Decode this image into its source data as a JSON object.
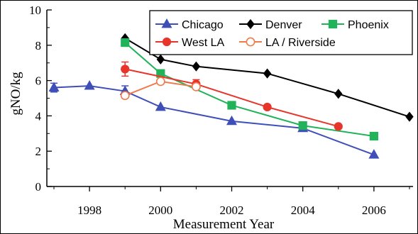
{
  "chart_data": {
    "type": "line",
    "title": "",
    "xlabel": "Measurement Year",
    "ylabel": "gNO/kg",
    "xlim": [
      1996.8,
      2007.1
    ],
    "ylim": [
      0,
      10
    ],
    "xticks": [
      1998,
      2000,
      2002,
      2004,
      2006
    ],
    "yticks": [
      0,
      2,
      4,
      6,
      8,
      10
    ],
    "grid": false,
    "legend_position": "top-right",
    "series": [
      {
        "name": "Chicago",
        "color": "#3f4fb8",
        "marker": "triangle",
        "filled": true,
        "x": [
          1997,
          1998,
          1999,
          2000,
          2002,
          2004,
          2006
        ],
        "y": [
          5.6,
          5.7,
          5.4,
          4.5,
          3.7,
          3.3,
          1.8
        ],
        "err": [
          0.25,
          0,
          0.3,
          0,
          0,
          0,
          0
        ]
      },
      {
        "name": "Denver",
        "color": "#000000",
        "marker": "diamond",
        "filled": true,
        "x": [
          1999,
          2000,
          2001,
          2003,
          2005,
          2007
        ],
        "y": [
          8.4,
          7.2,
          6.8,
          6.4,
          5.25,
          3.95
        ],
        "err": [
          0,
          0,
          0,
          0,
          0,
          0
        ]
      },
      {
        "name": "Phoenix",
        "color": "#22b35a",
        "marker": "square",
        "filled": true,
        "x": [
          1999,
          2000,
          2002,
          2004,
          2006
        ],
        "y": [
          8.15,
          6.4,
          4.6,
          3.45,
          2.85
        ],
        "err": [
          0,
          0,
          0,
          0,
          0
        ]
      },
      {
        "name": "West LA",
        "color": "#e8352b",
        "marker": "circle",
        "filled": true,
        "x": [
          1999,
          2001,
          2003,
          2005
        ],
        "y": [
          6.65,
          5.8,
          4.5,
          3.4
        ],
        "err": [
          0.4,
          0.25,
          0,
          0
        ]
      },
      {
        "name": "LA / Riverside",
        "color": "#ef7a4a",
        "marker": "circle",
        "filled": false,
        "x": [
          1999,
          2000,
          2001
        ],
        "y": [
          5.15,
          5.95,
          5.65
        ],
        "err": [
          0,
          0,
          0
        ]
      }
    ]
  }
}
